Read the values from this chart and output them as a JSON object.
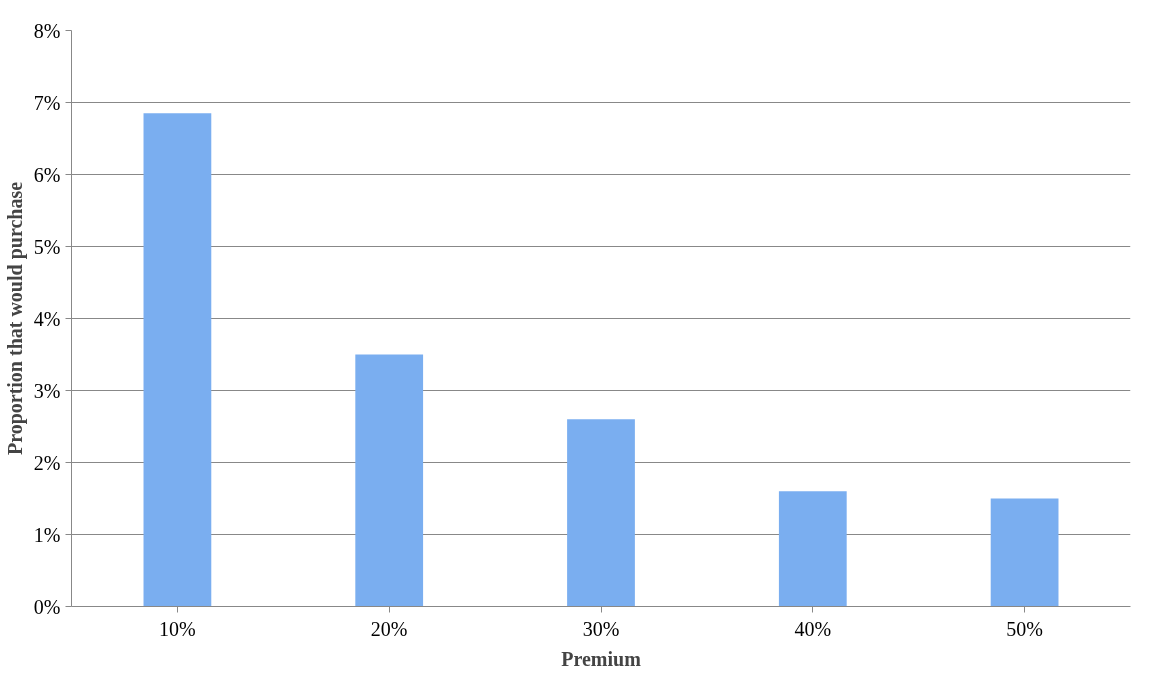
{
  "chart_data": {
    "type": "bar",
    "xlabel": "Premium",
    "ylabel": "Proportion that would purchase",
    "categories": [
      "10%",
      "20%",
      "30%",
      "40%",
      "50%"
    ],
    "values": [
      6.85,
      3.5,
      2.6,
      1.6,
      1.5
    ],
    "color": "#7aaef0",
    "ylim": [
      0,
      8
    ],
    "yticks": [
      {
        "value": 0,
        "label": "0%"
      },
      {
        "value": 1,
        "label": "1%"
      },
      {
        "value": 2,
        "label": "2%"
      },
      {
        "value": 3,
        "label": "3%"
      },
      {
        "value": 4,
        "label": "4%"
      },
      {
        "value": 5,
        "label": "5%"
      },
      {
        "value": 6,
        "label": "6%"
      },
      {
        "value": 7,
        "label": "7%"
      },
      {
        "value": 8,
        "label": "8%"
      }
    ],
    "grid": "y"
  }
}
